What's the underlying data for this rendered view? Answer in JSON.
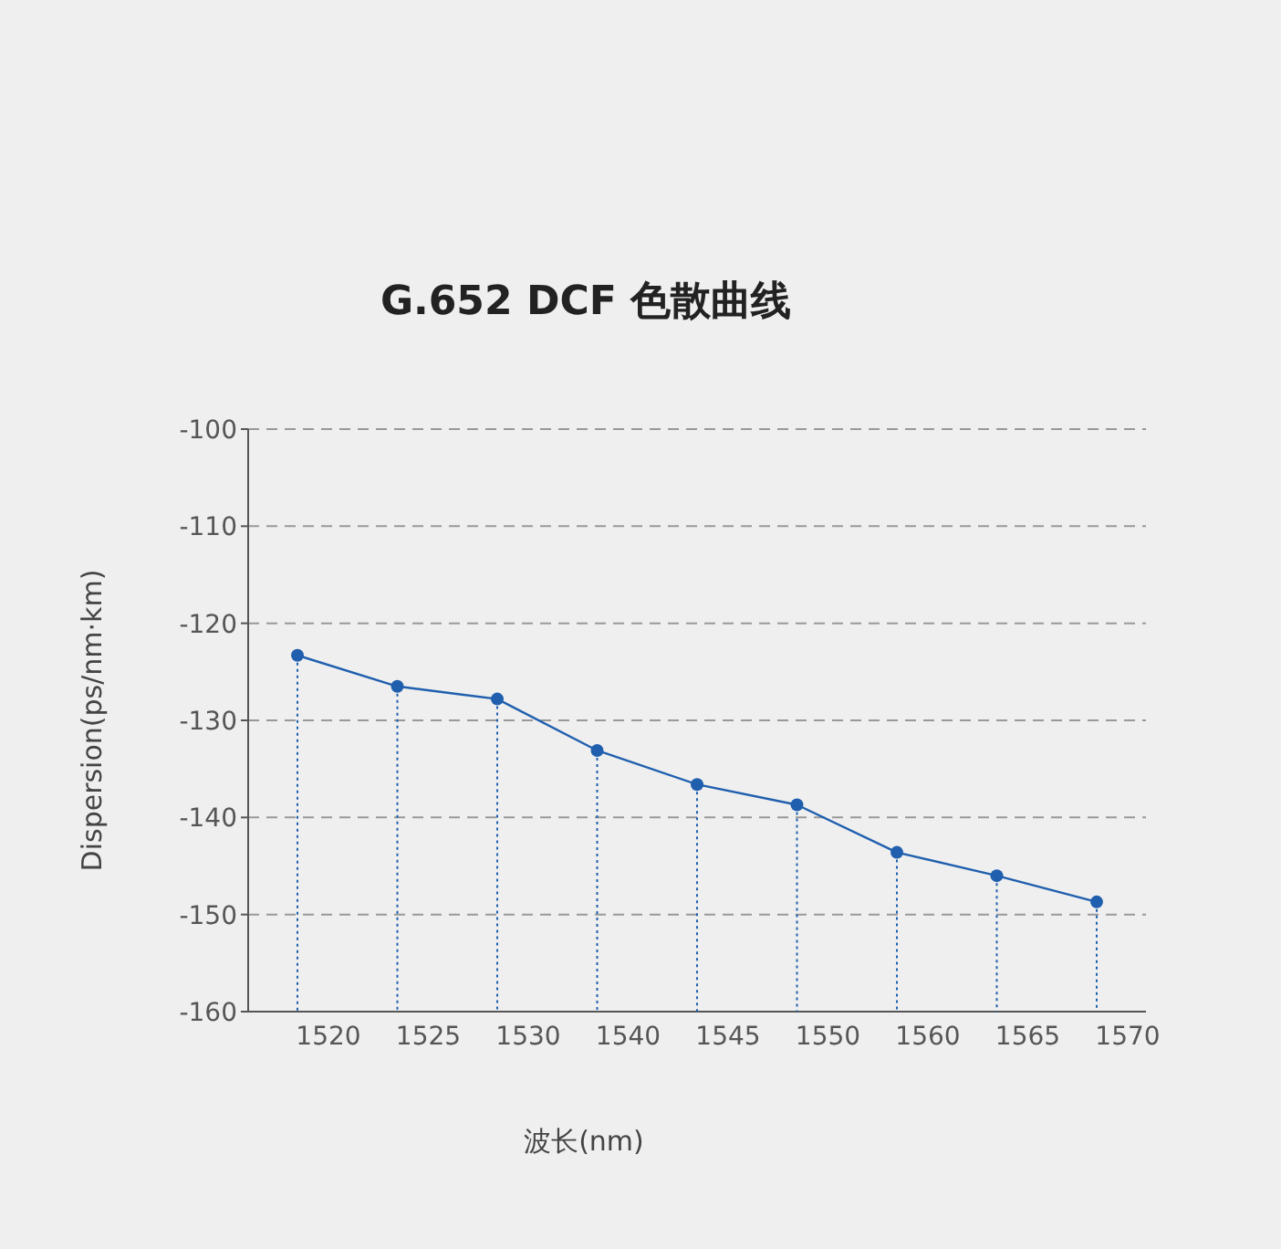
{
  "chart_data": {
    "type": "line",
    "title": "G.652 DCF 色散曲线",
    "xlabel": "波长(nm)",
    "ylabel": "Dispersion(ps/nm·km)",
    "categories": [
      "1520",
      "1525",
      "1530",
      "1540",
      "1545",
      "1550",
      "1560",
      "1565",
      "1570"
    ],
    "series": [
      {
        "color": "#1f5fae",
        "values": [
          -123.3,
          -126.5,
          -127.8,
          -133.1,
          -136.6,
          -138.7,
          -143.6,
          -146.0,
          -148.7
        ]
      }
    ],
    "ylim": [
      -160,
      -100
    ],
    "yticks": [
      -160,
      -150,
      -140,
      -130,
      -120,
      -110,
      -100
    ],
    "grid": "y",
    "marker": "circle",
    "line_style": "solid",
    "legend": false
  }
}
